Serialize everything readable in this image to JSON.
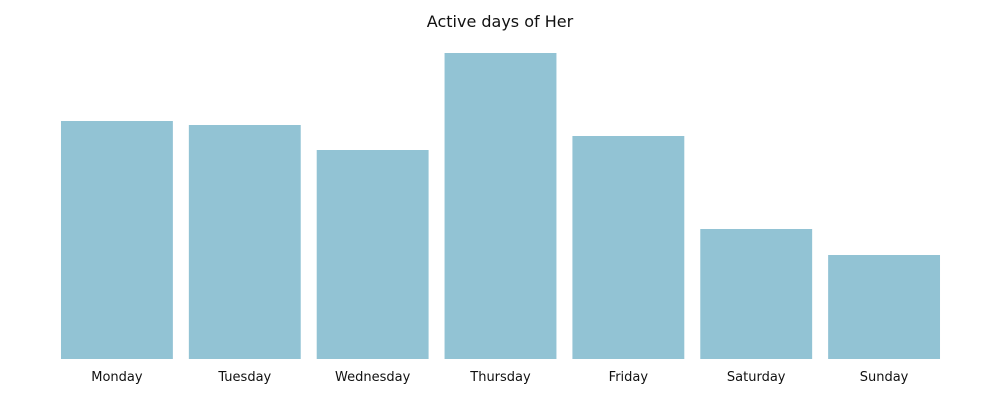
{
  "chart_data": {
    "type": "bar",
    "title": "Active days of Her",
    "xlabel": "",
    "ylabel": "",
    "categories": [
      "Monday",
      "Tuesday",
      "Wednesday",
      "Thursday",
      "Friday",
      "Saturday",
      "Sunday"
    ],
    "values": [
      238,
      234,
      209,
      306,
      223,
      130,
      104
    ],
    "ylim": [
      0,
      306
    ],
    "bar_color": "#92c3d4",
    "grid": false,
    "y_axis_visible": false
  }
}
